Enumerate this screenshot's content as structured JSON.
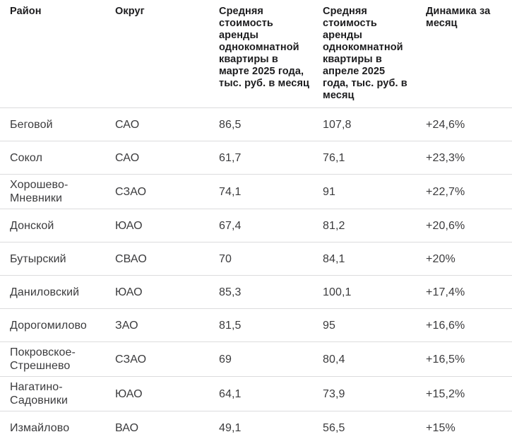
{
  "colors": {
    "background": "#ffffff",
    "header_text": "#1c1c1e",
    "body_text": "#3b3b3d",
    "row_separator": "#dcdcdd"
  },
  "table": {
    "columns": [
      {
        "key": "district",
        "label": "Район"
      },
      {
        "key": "okrug",
        "label": "Округ"
      },
      {
        "key": "march_price",
        "label": "Средняя стоимость аренды однокомнатной квартиры в марте 2025 года, тыс. руб. в месяц"
      },
      {
        "key": "april_price",
        "label": "Средняя стоимость аренды однокомнатной квартиры в апреле 2025 года, тыс. руб. в месяц"
      },
      {
        "key": "dynamics",
        "label": "Динамика за месяц"
      }
    ],
    "rows": [
      [
        "Беговой",
        "САО",
        "86,5",
        "107,8",
        "+24,6%"
      ],
      [
        "Сокол",
        "САО",
        "61,7",
        "76,1",
        "+23,3%"
      ],
      [
        "Хорошево-Мневники",
        "СЗАО",
        "74,1",
        "91",
        "+22,7%"
      ],
      [
        "Донской",
        "ЮАО",
        "67,4",
        "81,2",
        "+20,6%"
      ],
      [
        "Бутырский",
        "СВАО",
        "70",
        "84,1",
        "+20%"
      ],
      [
        "Даниловский",
        "ЮАО",
        "85,3",
        "100,1",
        "+17,4%"
      ],
      [
        "Дорогомилово",
        "ЗАО",
        "81,5",
        "95",
        "+16,6%"
      ],
      [
        "Покровское-Стрешнево",
        "СЗАО",
        "69",
        "80,4",
        "+16,5%"
      ],
      [
        "Нагатино-Садовники",
        "ЮАО",
        "64,1",
        "73,9",
        "+15,2%"
      ],
      [
        "Измайлово",
        "ВАО",
        "49,1",
        "56,5",
        "+15%"
      ]
    ]
  },
  "chart_data": {
    "type": "table",
    "title": "",
    "columns": [
      "Район",
      "Округ",
      "Средняя стоимость аренды однокомнатной квартиры в марте 2025 года, тыс. руб. в месяц",
      "Средняя стоимость аренды однокомнатной квартиры в апреле 2025 года, тыс. руб. в месяц",
      "Динамика за месяц"
    ],
    "rows": [
      {
        "district": "Беговой",
        "okrug": "САО",
        "march_2025": 86.5,
        "april_2025": 107.8,
        "dynamics_pct": 24.6
      },
      {
        "district": "Сокол",
        "okrug": "САО",
        "march_2025": 61.7,
        "april_2025": 76.1,
        "dynamics_pct": 23.3
      },
      {
        "district": "Хорошево-Мневники",
        "okrug": "СЗАО",
        "march_2025": 74.1,
        "april_2025": 91,
        "dynamics_pct": 22.7
      },
      {
        "district": "Донской",
        "okrug": "ЮАО",
        "march_2025": 67.4,
        "april_2025": 81.2,
        "dynamics_pct": 20.6
      },
      {
        "district": "Бутырский",
        "okrug": "СВАО",
        "march_2025": 70,
        "april_2025": 84.1,
        "dynamics_pct": 20
      },
      {
        "district": "Даниловский",
        "okrug": "ЮАО",
        "march_2025": 85.3,
        "april_2025": 100.1,
        "dynamics_pct": 17.4
      },
      {
        "district": "Дорогомилово",
        "okrug": "ЗАО",
        "march_2025": 81.5,
        "april_2025": 95,
        "dynamics_pct": 16.6
      },
      {
        "district": "Покровское-Стрешнево",
        "okrug": "СЗАО",
        "march_2025": 69,
        "april_2025": 80.4,
        "dynamics_pct": 16.5
      },
      {
        "district": "Нагатино-Садовники",
        "okrug": "ЮАО",
        "march_2025": 64.1,
        "april_2025": 73.9,
        "dynamics_pct": 15.2
      },
      {
        "district": "Измайлово",
        "okrug": "ВАО",
        "march_2025": 49.1,
        "april_2025": 56.5,
        "dynamics_pct": 15
      }
    ],
    "units": "тыс. руб. в месяц"
  }
}
